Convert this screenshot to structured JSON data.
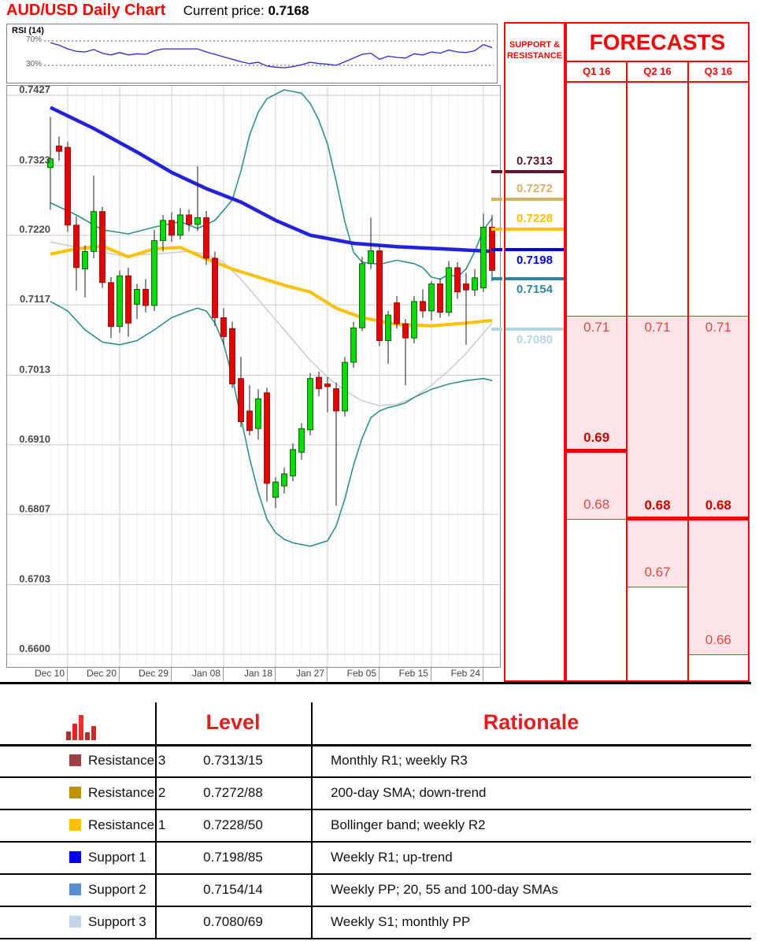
{
  "header": {
    "title": "AUD/USD Daily Chart",
    "price_label": "Current price:",
    "price": "0.7168"
  },
  "sr_panel": {
    "line1": "SUPPORT &",
    "line2": "RESISTANCE"
  },
  "table": {
    "level_header": "Level",
    "rationale_header": "Rationale"
  },
  "levels": [
    {
      "label": "Resistance 3",
      "panel_value": "0.7313",
      "price": 0.7313,
      "level": "0.7313/15",
      "rationale": "Monthly R1; weekly R3",
      "line_color": "#5a1832",
      "marker_color": "#9e4044",
      "side": "above"
    },
    {
      "label": "Resistance 2",
      "panel_value": "0.7272",
      "price": 0.7272,
      "level": "0.7272/88",
      "rationale": "200-day SMA; down-trend",
      "line_color": "#d3af6a",
      "marker_color": "#bf9000",
      "side": "above"
    },
    {
      "label": "Resistance 1",
      "panel_value": "0.7228",
      "price": 0.7228,
      "level": "0.7228/50",
      "rationale": "Bollinger band; weekly R2",
      "line_color": "#ffc000",
      "marker_color": "#ffc000",
      "side": "above"
    },
    {
      "label": "Support 1",
      "panel_value": "0.7198",
      "price": 0.7198,
      "level": "0.7198/85",
      "rationale": "Weekly R1; up-trend",
      "line_color": "#0000ee",
      "marker_color": "#0000ff",
      "side": "below"
    },
    {
      "label": "Support 2",
      "panel_value": "0.7154",
      "price": 0.7154,
      "level": "0.7154/14",
      "rationale": "Weekly PP; 20, 55 and 100-day SMAs",
      "line_color": "#31849b",
      "marker_color": "#558ed5",
      "side": "below"
    },
    {
      "label": "Support 3",
      "panel_value": "0.7080",
      "price": 0.708,
      "level": "0.7080/69",
      "rationale": "Weekly S1; monthly PP",
      "line_color": "#b5d5de",
      "marker_color": "#c3d3ea",
      "side": "below"
    }
  ],
  "chart_data": {
    "type": "candlestick",
    "title": "AUD/USD Daily Chart",
    "current_price": 0.7168,
    "x_ticks": [
      "Dec 10",
      "Dec 20",
      "Dec 29",
      "Jan 08",
      "Jan 18",
      "Jan 27",
      "Feb 05",
      "Feb 15",
      "Feb 24"
    ],
    "y_ticks": [
      "0.7427",
      "0.7323",
      "0.7220",
      "0.7117",
      "0.7013",
      "0.6910",
      "0.6807",
      "0.6703",
      "0.6600"
    ],
    "ylim": [
      0.66,
      0.7427
    ],
    "grid": true,
    "candles": [
      [
        0.732,
        0.7395,
        0.7258,
        0.7333
      ],
      [
        0.7352,
        0.7366,
        0.733,
        0.7344
      ],
      [
        0.735,
        0.7358,
        0.7225,
        0.7235
      ],
      [
        0.7235,
        0.7248,
        0.7138,
        0.7172
      ],
      [
        0.717,
        0.7205,
        0.7128,
        0.7196
      ],
      [
        0.7196,
        0.7308,
        0.7186,
        0.7255
      ],
      [
        0.7255,
        0.7262,
        0.7142,
        0.715
      ],
      [
        0.715,
        0.7158,
        0.7068,
        0.7085
      ],
      [
        0.7085,
        0.7168,
        0.7076,
        0.716
      ],
      [
        0.716,
        0.7172,
        0.707,
        0.709
      ],
      [
        0.7118,
        0.7148,
        0.7096,
        0.714
      ],
      [
        0.714,
        0.7155,
        0.7106,
        0.7116
      ],
      [
        0.7116,
        0.7228,
        0.7108,
        0.7212
      ],
      [
        0.7212,
        0.725,
        0.7196,
        0.7242
      ],
      [
        0.7242,
        0.7254,
        0.721,
        0.722
      ],
      [
        0.722,
        0.726,
        0.7214,
        0.725
      ],
      [
        0.725,
        0.7258,
        0.7226,
        0.7236
      ],
      [
        0.7236,
        0.7322,
        0.7226,
        0.7246
      ],
      [
        0.7246,
        0.7256,
        0.7176,
        0.7186
      ],
      [
        0.7186,
        0.7196,
        0.7086,
        0.7098
      ],
      [
        0.7098,
        0.7112,
        0.7058,
        0.707
      ],
      [
        0.7082,
        0.7092,
        0.6994,
        0.7
      ],
      [
        0.7008,
        0.704,
        0.6936,
        0.6944
      ],
      [
        0.696,
        0.6998,
        0.6924,
        0.6931
      ],
      [
        0.6934,
        0.6992,
        0.6918,
        0.6978
      ],
      [
        0.6987,
        0.6994,
        0.6826,
        0.6853
      ],
      [
        0.6832,
        0.6862,
        0.6816,
        0.6855
      ],
      [
        0.6849,
        0.6876,
        0.6838,
        0.6867
      ],
      [
        0.6864,
        0.6912,
        0.6856,
        0.6903
      ],
      [
        0.6899,
        0.6942,
        0.6888,
        0.6934
      ],
      [
        0.6932,
        0.7016,
        0.6924,
        0.7008
      ],
      [
        0.701,
        0.7018,
        0.6982,
        0.6993
      ],
      [
        0.7,
        0.701,
        0.6958,
        0.6996
      ],
      [
        0.6993,
        0.7002,
        0.682,
        0.696
      ],
      [
        0.696,
        0.704,
        0.6952,
        0.7032
      ],
      [
        0.7032,
        0.7092,
        0.7024,
        0.7083
      ],
      [
        0.7083,
        0.7188,
        0.7078,
        0.7178
      ],
      [
        0.7178,
        0.7246,
        0.717,
        0.7197
      ],
      [
        0.7197,
        0.7205,
        0.7056,
        0.7064
      ],
      [
        0.7064,
        0.7108,
        0.703,
        0.7102
      ],
      [
        0.712,
        0.713,
        0.7082,
        0.7089
      ],
      [
        0.7089,
        0.7096,
        0.6998,
        0.7068
      ],
      [
        0.7068,
        0.713,
        0.706,
        0.7122
      ],
      [
        0.7122,
        0.714,
        0.7098,
        0.7108
      ],
      [
        0.7108,
        0.7152,
        0.7094,
        0.7148
      ],
      [
        0.7148,
        0.7156,
        0.7098,
        0.7106
      ],
      [
        0.7106,
        0.7182,
        0.71,
        0.7172
      ],
      [
        0.7172,
        0.718,
        0.7126,
        0.7136
      ],
      [
        0.7148,
        0.7164,
        0.7058,
        0.7139
      ],
      [
        0.7139,
        0.717,
        0.713,
        0.7157
      ],
      [
        0.7142,
        0.7252,
        0.7136,
        0.7232
      ],
      [
        0.7232,
        0.725,
        0.7152,
        0.7168
      ]
    ],
    "overlays": [
      {
        "name": "200-day SMA",
        "color": "#2222dd",
        "width": 4.5,
        "points": [
          [
            0,
            0.7409
          ],
          [
            5,
            0.7378
          ],
          [
            10,
            0.7343
          ],
          [
            14,
            0.7313
          ],
          [
            18,
            0.7289
          ],
          [
            22,
            0.7269
          ],
          [
            26,
            0.7242
          ],
          [
            30,
            0.722
          ],
          [
            35,
            0.7208
          ],
          [
            40,
            0.7203
          ],
          [
            45,
            0.72
          ],
          [
            51,
            0.7196
          ]
        ]
      },
      {
        "name": "100-day SMA",
        "color": "#ffc000",
        "width": 4,
        "points": [
          [
            0,
            0.7192
          ],
          [
            3,
            0.72
          ],
          [
            6,
            0.7204
          ],
          [
            9,
            0.7188
          ],
          [
            12,
            0.72
          ],
          [
            15,
            0.7202
          ],
          [
            18,
            0.7185
          ],
          [
            21,
            0.717
          ],
          [
            24,
            0.7158
          ],
          [
            27,
            0.7146
          ],
          [
            30,
            0.7136
          ],
          [
            33,
            0.7112
          ],
          [
            36,
            0.7098
          ],
          [
            40,
            0.7088
          ],
          [
            44,
            0.7086
          ],
          [
            48,
            0.709
          ],
          [
            51,
            0.7094
          ]
        ]
      },
      {
        "name": "20-day SMA",
        "color": "#cdcdcd",
        "width": 1.6,
        "points": [
          [
            0,
            0.721
          ],
          [
            4,
            0.72
          ],
          [
            8,
            0.719
          ],
          [
            12,
            0.7192
          ],
          [
            16,
            0.7196
          ],
          [
            18,
            0.7192
          ],
          [
            20,
            0.718
          ],
          [
            22,
            0.7155
          ],
          [
            24,
            0.7125
          ],
          [
            26,
            0.7095
          ],
          [
            28,
            0.7065
          ],
          [
            30,
            0.7035
          ],
          [
            32,
            0.701
          ],
          [
            34,
            0.699
          ],
          [
            36,
            0.6975
          ],
          [
            38,
            0.6968
          ],
          [
            40,
            0.697
          ],
          [
            42,
            0.698
          ],
          [
            44,
            0.6998
          ],
          [
            46,
            0.702
          ],
          [
            48,
            0.7045
          ],
          [
            50,
            0.7075
          ],
          [
            51,
            0.709
          ]
        ]
      },
      {
        "name": "Bollinger upper",
        "color": "#2e8f8f",
        "width": 1.6,
        "points": [
          [
            0,
            0.7268
          ],
          [
            3,
            0.725
          ],
          [
            6,
            0.7228
          ],
          [
            9,
            0.7222
          ],
          [
            12,
            0.7232
          ],
          [
            15,
            0.724
          ],
          [
            17,
            0.723
          ],
          [
            19,
            0.7242
          ],
          [
            21,
            0.7272
          ],
          [
            22,
            0.7315
          ],
          [
            23,
            0.7368
          ],
          [
            24,
            0.7402
          ],
          [
            25,
            0.7422
          ],
          [
            27,
            0.7435
          ],
          [
            29,
            0.743
          ],
          [
            30,
            0.7415
          ],
          [
            31,
            0.739
          ],
          [
            32,
            0.7355
          ],
          [
            33,
            0.73
          ],
          [
            34,
            0.724
          ],
          [
            35,
            0.7195
          ],
          [
            36,
            0.718
          ],
          [
            38,
            0.7177
          ],
          [
            40,
            0.7183
          ],
          [
            42,
            0.7178
          ],
          [
            43,
            0.7172
          ],
          [
            44,
            0.7158
          ],
          [
            45,
            0.7155
          ],
          [
            46,
            0.7162
          ],
          [
            47,
            0.7158
          ],
          [
            48,
            0.717
          ],
          [
            49,
            0.7196
          ],
          [
            50,
            0.7228
          ],
          [
            51,
            0.7245
          ]
        ]
      },
      {
        "name": "Bollinger lower",
        "color": "#2e8f8f",
        "width": 1.6,
        "points": [
          [
            0,
            0.7122
          ],
          [
            2,
            0.7108
          ],
          [
            4,
            0.708
          ],
          [
            6,
            0.7062
          ],
          [
            8,
            0.7058
          ],
          [
            10,
            0.7064
          ],
          [
            12,
            0.708
          ],
          [
            14,
            0.7098
          ],
          [
            16,
            0.7108
          ],
          [
            17,
            0.7112
          ],
          [
            18,
            0.7108
          ],
          [
            19,
            0.709
          ],
          [
            20,
            0.706
          ],
          [
            21,
            0.701
          ],
          [
            22,
            0.695
          ],
          [
            23,
            0.689
          ],
          [
            24,
            0.684
          ],
          [
            25,
            0.68
          ],
          [
            26,
            0.678
          ],
          [
            27,
            0.677
          ],
          [
            28,
            0.6765
          ],
          [
            30,
            0.676
          ],
          [
            32,
            0.6768
          ],
          [
            33,
            0.679
          ],
          [
            34,
            0.683
          ],
          [
            35,
            0.688
          ],
          [
            36,
            0.692
          ],
          [
            37,
            0.695
          ],
          [
            38,
            0.696
          ],
          [
            39,
            0.6965
          ],
          [
            40,
            0.6968
          ],
          [
            41,
            0.6972
          ],
          [
            42,
            0.698
          ],
          [
            44,
            0.6992
          ],
          [
            46,
            0.7
          ],
          [
            48,
            0.7005
          ],
          [
            50,
            0.7008
          ],
          [
            51,
            0.7005
          ]
        ]
      }
    ],
    "rsi": {
      "type": "line",
      "label": "RSI (14)",
      "upper_label": "70%",
      "lower_label": "30%",
      "gridlines": [
        70,
        30
      ],
      "color": "#2929c8",
      "values": [
        67,
        63,
        57,
        53,
        52,
        56,
        50,
        47,
        51,
        47,
        49,
        48,
        54,
        57,
        57,
        57,
        57,
        57,
        52,
        48,
        44,
        40,
        36,
        33,
        35,
        29,
        27,
        26,
        28,
        31,
        35,
        33,
        32,
        30,
        36,
        42,
        48,
        50,
        40,
        45,
        43,
        42,
        49,
        47,
        52,
        50,
        55,
        52,
        51,
        54,
        64,
        59
      ]
    },
    "forecasts": {
      "type": "range-bars",
      "title": "FORECASTS",
      "columns": [
        {
          "label": "Q1 16",
          "high": 0.71,
          "low": 0.68,
          "point": 0.69
        },
        {
          "label": "Q2 16",
          "high": 0.71,
          "low": 0.67,
          "point": 0.68
        },
        {
          "label": "Q3 16",
          "high": 0.71,
          "low": 0.66,
          "point": 0.68
        }
      ]
    }
  }
}
